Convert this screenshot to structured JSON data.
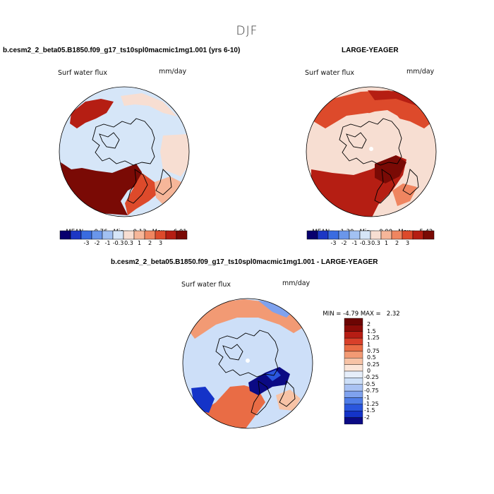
{
  "page": {
    "title": "DJF",
    "left_case": "b.cesm2_2_beta05.B1850.f09_g17_ts10spl0macmic1mg1.001 (yrs 6-10)",
    "right_case": "LARGE-YEAGER",
    "diff_case": "b.cesm2_2_beta05.B1850.f09_g17_ts10spl0macmic1mg1.001 - LARGE-YEAGER"
  },
  "colors": {
    "abs_scale": [
      "#08006e",
      "#1c37c4",
      "#3a6ce0",
      "#6a96ea",
      "#a2c1f2",
      "#d6e6f8",
      "#f7ded2",
      "#f6b699",
      "#ef8560",
      "#dd4a2b",
      "#b51e13",
      "#7a0a05"
    ],
    "diff_scale": [
      "#0b0a84",
      "#1433c8",
      "#2a56de",
      "#4f7de8",
      "#7fa2ee",
      "#a9c2f3",
      "#cddff8",
      "#e6eefa",
      "#fbe5d8",
      "#f7c3a6",
      "#f29a74",
      "#e96c45",
      "#d8402a",
      "#b61d14",
      "#8c0c08",
      "#6c0503"
    ]
  },
  "chart_data": [
    {
      "type": "heatmap",
      "title": "b.cesm2_2_beta05.B1850.f09_g17_ts10spl0macmic1mg1.001 (yrs 6-10)",
      "variable": "Surf water flux",
      "units": "mm/day",
      "projection": "north polar stereographic",
      "mean_label": "MEAN=",
      "mean": "0.76",
      "min_label": "Min=",
      "min": "-0.13",
      "max_label": "Max=",
      "max": "6.01",
      "levels": [
        "-3",
        "-2",
        "-1",
        "-0.3",
        "0.3",
        "1",
        "2",
        "3"
      ]
    },
    {
      "type": "heatmap",
      "title": "LARGE-YEAGER",
      "variable": "Surf water flux",
      "units": "mm/day",
      "projection": "north polar stereographic",
      "mean_label": "MEAN=",
      "mean": "1.30",
      "min_label": "Min=",
      "min": "0.00",
      "max_label": "Max=",
      "max": "5.42",
      "levels": [
        "-3",
        "-2",
        "-1",
        "-0.3",
        "0.3",
        "1",
        "2",
        "3"
      ]
    },
    {
      "type": "heatmap",
      "title": "b.cesm2_2_beta05.B1850.f09_g17_ts10spl0macmic1mg1.001 - LARGE-YEAGER",
      "variable": "Surf water flux",
      "units": "mm/day",
      "projection": "north polar stereographic",
      "min_label": "MIN =",
      "min": "-4.79",
      "max_label": "MAX =",
      "max": "2.32",
      "levels": [
        "2",
        "1.5",
        "1.25",
        "1",
        "0.75",
        "0.5",
        "0.25",
        "0",
        "-0.25",
        "-0.5",
        "-0.75",
        "-1",
        "-1.25",
        "-1.5",
        "-2"
      ]
    }
  ]
}
